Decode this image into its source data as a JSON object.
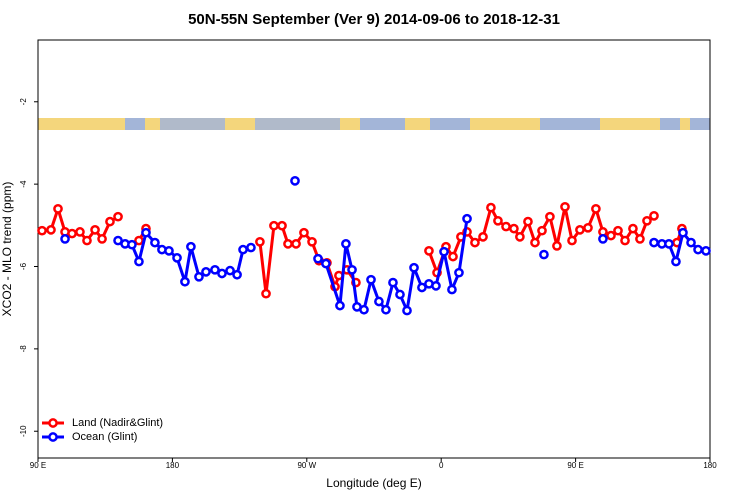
{
  "chart_data": {
    "type": "line",
    "title": "50N-55N September (Ver 9)   2014-09-06 to 2018-12-31",
    "x_label": "Longitude (deg E)",
    "y_label": "XCO2 - MLO trend (ppm)",
    "xlim": [
      90,
      540
    ],
    "xticks": [
      {
        "value": 90,
        "label": "90 E"
      },
      180,
      {
        "value": 270,
        "label": "90 W"
      },
      {
        "value": 360,
        "label": "0"
      },
      {
        "value": 450,
        "label": "90 E"
      },
      {
        "value": 540,
        "label": "180"
      }
    ],
    "ylim": [
      -10.65,
      -0.5
    ],
    "yticks": [
      -2,
      -4,
      -6,
      -8,
      -10
    ],
    "legend": "bottom-left",
    "series": [
      {
        "name": "Land (Nadir&Glint)",
        "color": "#ff0000",
        "x": [
          92.7,
          98.7,
          103.4,
          108.1,
          112.8,
          118.1,
          122.8,
          128.2,
          132.9,
          138.2,
          143.6,
          150,
          157.6,
          162.3,
          200,
          238.6,
          242.7,
          248.0,
          253.4,
          257.4,
          262.8,
          268.1,
          273.5,
          278.2,
          283.5,
          288.9,
          291.5,
          296.9,
          302.9,
          330,
          351.8,
          357.2,
          363.2,
          367.9,
          373.2,
          377.3,
          382.6,
          388.0,
          393.3,
          398.0,
          403.4,
          408.7,
          412.7,
          418.1,
          422.8,
          427.5,
          432.8,
          437.5,
          442.9,
          447.6,
          452.9,
          458.3,
          463.6,
          468.3,
          473.7,
          478.4,
          483.1,
          488.4,
          493.1,
          497.8,
          502.5,
          510,
          517.9,
          521.2
        ],
        "values": [
          -5.13,
          -5.11,
          -4.6,
          -5.16,
          -5.2,
          -5.16,
          -5.37,
          -5.11,
          -5.33,
          -4.91,
          -4.79,
          null,
          -5.37,
          -5.08,
          null,
          -5.4,
          -6.66,
          -5.01,
          -5.01,
          -5.45,
          -5.45,
          -5.18,
          -5.4,
          -5.86,
          -5.91,
          -6.49,
          -6.22,
          -6.08,
          -6.39,
          null,
          -5.62,
          -6.15,
          -5.52,
          -5.76,
          -5.28,
          -5.16,
          -5.42,
          -5.28,
          -4.57,
          -4.89,
          -5.03,
          -5.08,
          -5.28,
          -4.91,
          -5.42,
          -5.13,
          -4.79,
          -5.5,
          -4.55,
          -5.37,
          -5.11,
          -5.06,
          -4.6,
          -5.16,
          -5.25,
          -5.13,
          -5.37,
          -5.08,
          -5.33,
          -4.89,
          -4.77,
          null,
          -5.42,
          -5.08
        ]
      },
      {
        "name": "Ocean (Glint)",
        "color": "#0000ff",
        "x": [
          108.1,
          125,
          143.6,
          148.3,
          152.9,
          157.6,
          162.3,
          168.3,
          173.0,
          177.7,
          183.1,
          188.4,
          192.4,
          197.8,
          202.5,
          208.5,
          213.2,
          218.6,
          223.3,
          227.3,
          232.6,
          245,
          262.1,
          270,
          277.5,
          282.8,
          292.2,
          296.2,
          300.3,
          303.6,
          308.3,
          313.0,
          318.3,
          323.0,
          327.7,
          332.4,
          337.1,
          341.8,
          347.1,
          351.8,
          356.5,
          361.9,
          367.2,
          371.9,
          377.3,
          400,
          428.8,
          440,
          468.3,
          490,
          502.5,
          507.8,
          512.5,
          517.2,
          521.9,
          527.3,
          532.0,
          537.3
        ],
        "values": [
          -5.33,
          null,
          -5.37,
          -5.45,
          -5.47,
          -5.88,
          -5.18,
          -5.42,
          -5.59,
          -5.62,
          -5.79,
          -6.37,
          -5.52,
          -6.25,
          -6.13,
          -6.08,
          -6.17,
          -6.1,
          -6.2,
          -5.59,
          -5.54,
          null,
          -3.92,
          null,
          -5.81,
          -5.93,
          -6.95,
          -5.45,
          -6.08,
          -6.98,
          -7.05,
          -6.32,
          -6.85,
          -7.05,
          -6.39,
          -6.68,
          -7.07,
          -6.03,
          -6.51,
          -6.42,
          -6.47,
          -5.64,
          -6.56,
          -6.15,
          -4.84,
          null,
          -5.71,
          null,
          -5.33,
          null,
          -5.42,
          -5.45,
          -5.45,
          -5.88,
          -5.18,
          -5.42,
          -5.59,
          -5.62
        ]
      }
    ]
  }
}
